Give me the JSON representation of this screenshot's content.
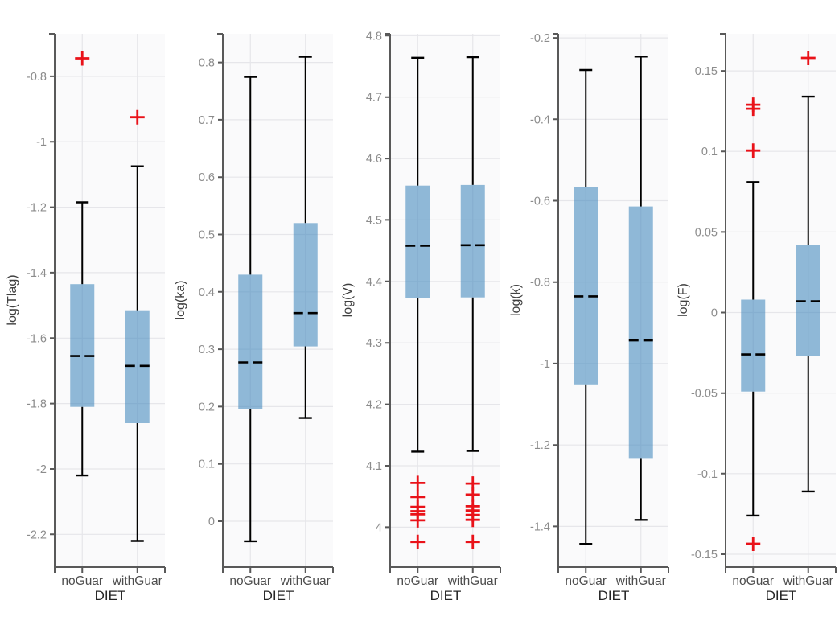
{
  "figure": {
    "x_axis_label": "DIET",
    "categories": [
      "noGuar",
      "withGuar"
    ],
    "colors": {
      "box_fill": "#3E85BD",
      "box_fill_opacity": 0.57,
      "median_line": "#000000",
      "whisker": "#000000",
      "outlier": "#e91219",
      "axis_spine": "#595959",
      "gridline": "#e6e6ea",
      "panel_background": "#fafafb",
      "y_tick_label": "#8c8c8c",
      "category_label": "#4d4d4d",
      "axis_title": "#262626"
    }
  },
  "chart_data": [
    {
      "type": "boxplot",
      "title": "",
      "xlabel": "DIET",
      "ylabel": "log(Tlag)",
      "categories": [
        "noGuar",
        "withGuar"
      ],
      "ylim": [
        -2.3,
        -0.67
      ],
      "yticks": [
        -0.8,
        -1,
        -1.2,
        -1.4,
        -1.6,
        -1.8,
        -2,
        -2.2
      ],
      "ytick_labels": [
        "-0.8",
        "-1",
        "-1.2",
        "-1.4",
        "-1.6",
        "-1.8",
        "-2",
        "-2.2"
      ],
      "grid": true,
      "series": [
        {
          "category": "noGuar",
          "whisker_low": -2.02,
          "q1": -1.81,
          "median": -1.655,
          "q3": -1.435,
          "whisker_high": -1.185,
          "outliers": [
            -0.745
          ]
        },
        {
          "category": "withGuar",
          "whisker_low": -2.22,
          "q1": -1.86,
          "median": -1.685,
          "q3": -1.515,
          "whisker_high": -1.075,
          "outliers": [
            -0.925
          ]
        }
      ]
    },
    {
      "type": "boxplot",
      "title": "",
      "xlabel": "DIET",
      "ylabel": "log(ka)",
      "categories": [
        "noGuar",
        "withGuar"
      ],
      "ylim": [
        -0.08,
        0.85
      ],
      "yticks": [
        0.8,
        0.7,
        0.6,
        0.5,
        0.4,
        0.3,
        0.2,
        0.1,
        0
      ],
      "ytick_labels": [
        "0.8",
        "0.7",
        "0.6",
        "0.5",
        "0.4",
        "0.3",
        "0.2",
        "0.1",
        "0"
      ],
      "grid": true,
      "series": [
        {
          "category": "noGuar",
          "whisker_low": -0.035,
          "q1": 0.195,
          "median": 0.277,
          "q3": 0.43,
          "whisker_high": 0.775,
          "outliers": []
        },
        {
          "category": "withGuar",
          "whisker_low": 0.18,
          "q1": 0.305,
          "median": 0.363,
          "q3": 0.52,
          "whisker_high": 0.81,
          "outliers": []
        }
      ]
    },
    {
      "type": "boxplot",
      "title": "",
      "xlabel": "DIET",
      "ylabel": "log(V)",
      "categories": [
        "noGuar",
        "withGuar"
      ],
      "ylim": [
        3.935,
        4.803
      ],
      "yticks": [
        4.8,
        4.7,
        4.6,
        4.5,
        4.4,
        4.3,
        4.2,
        4.1,
        4
      ],
      "ytick_labels": [
        "4.8",
        "4.7",
        "4.6",
        "4.5",
        "4.4",
        "4.3",
        "4.2",
        "4.1",
        "4"
      ],
      "grid": true,
      "series": [
        {
          "category": "noGuar",
          "whisker_low": 4.123,
          "q1": 4.373,
          "median": 4.458,
          "q3": 4.556,
          "whisker_high": 4.764,
          "outliers": [
            4.072,
            4.049,
            4.033,
            4.026,
            4.021,
            4.011,
            3.976
          ]
        },
        {
          "category": "withGuar",
          "whisker_low": 4.124,
          "q1": 4.374,
          "median": 4.459,
          "q3": 4.557,
          "whisker_high": 4.765,
          "outliers": [
            4.071,
            4.053,
            4.034,
            4.027,
            4.02,
            4.012,
            3.976
          ]
        }
      ]
    },
    {
      "type": "boxplot",
      "title": "",
      "xlabel": "DIET",
      "ylabel": "log(k)",
      "categories": [
        "noGuar",
        "withGuar"
      ],
      "ylim": [
        -1.5,
        -0.19
      ],
      "yticks": [
        -0.2,
        -0.4,
        -0.6,
        -0.8,
        -1,
        -1.2,
        -1.4
      ],
      "ytick_labels": [
        "-0.2",
        "-0.4",
        "-0.6",
        "-0.8",
        "-1",
        "-1.2",
        "-1.4"
      ],
      "grid": true,
      "series": [
        {
          "category": "noGuar",
          "whisker_low": -1.443,
          "q1": -1.051,
          "median": -0.835,
          "q3": -0.566,
          "whisker_high": -0.279,
          "outliers": []
        },
        {
          "category": "withGuar",
          "whisker_low": -1.384,
          "q1": -1.232,
          "median": -0.943,
          "q3": -0.614,
          "whisker_high": -0.246,
          "outliers": []
        }
      ]
    },
    {
      "type": "boxplot",
      "title": "",
      "xlabel": "DIET",
      "ylabel": "log(F)",
      "categories": [
        "noGuar",
        "withGuar"
      ],
      "ylim": [
        -0.158,
        0.173
      ],
      "yticks": [
        0.15,
        0.1,
        0.05,
        0,
        -0.05,
        -0.1,
        -0.15
      ],
      "ytick_labels": [
        "0.15",
        "0.1",
        "0.05",
        "0",
        "-0.05",
        "-0.1",
        "-0.15"
      ],
      "grid": true,
      "series": [
        {
          "category": "noGuar",
          "whisker_low": -0.126,
          "q1": -0.049,
          "median": -0.026,
          "q3": 0.008,
          "whisker_high": 0.081,
          "outliers": [
            0.129,
            0.1265,
            0.1005,
            -0.1435
          ]
        },
        {
          "category": "withGuar",
          "whisker_low": -0.111,
          "q1": -0.027,
          "median": 0.007,
          "q3": 0.042,
          "whisker_high": 0.134,
          "outliers": [
            0.158
          ]
        }
      ]
    }
  ]
}
